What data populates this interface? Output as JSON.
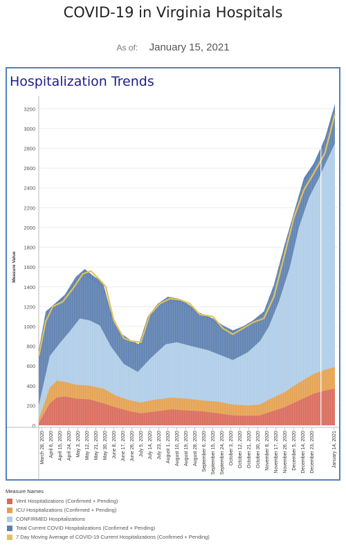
{
  "header": {
    "title": "COVID-19 in Virginia Hospitals",
    "as_of_label": "As of:",
    "as_of_date": "January 15, 2021"
  },
  "panel": {
    "title": "Hospitalization Trends"
  },
  "chart_data": {
    "type": "area",
    "ylabel": "Measure Value",
    "ylim": [
      0,
      3300
    ],
    "yticks": [
      0,
      200,
      400,
      600,
      800,
      1000,
      1200,
      1400,
      1600,
      1800,
      2000,
      2200,
      2400,
      2600,
      2800,
      3000,
      3200
    ],
    "x_start": "2020-03-25",
    "x_end": "2021-01-15",
    "xticks": [
      {
        "label": "March 28, 2020",
        "date": "2020-03-28"
      },
      {
        "label": "April 6, 2020",
        "date": "2020-04-06"
      },
      {
        "label": "April 15, 2020",
        "date": "2020-04-15"
      },
      {
        "label": "April 24, 2020",
        "date": "2020-04-24"
      },
      {
        "label": "May 3, 2020",
        "date": "2020-05-03"
      },
      {
        "label": "May 12, 2020",
        "date": "2020-05-12"
      },
      {
        "label": "May 21, 2020",
        "date": "2020-05-21"
      },
      {
        "label": "May 30, 2020",
        "date": "2020-05-30"
      },
      {
        "label": "June 8, 2020",
        "date": "2020-06-08"
      },
      {
        "label": "June 17, 2020",
        "date": "2020-06-17"
      },
      {
        "label": "June 26, 2020",
        "date": "2020-06-26"
      },
      {
        "label": "July 5, 2020",
        "date": "2020-07-05"
      },
      {
        "label": "July 14, 2020",
        "date": "2020-07-14"
      },
      {
        "label": "July 23, 2020",
        "date": "2020-07-23"
      },
      {
        "label": "August 1, 2020",
        "date": "2020-08-01"
      },
      {
        "label": "August 10, 2020",
        "date": "2020-08-10"
      },
      {
        "label": "August 19, 2020",
        "date": "2020-08-19"
      },
      {
        "label": "August 28, 2020",
        "date": "2020-08-28"
      },
      {
        "label": "September 6, 2020",
        "date": "2020-09-06"
      },
      {
        "label": "September 15, 2020",
        "date": "2020-09-15"
      },
      {
        "label": "September 24, 2020",
        "date": "2020-09-24"
      },
      {
        "label": "October 3, 2020",
        "date": "2020-10-03"
      },
      {
        "label": "October 12, 2020",
        "date": "2020-10-12"
      },
      {
        "label": "October 21, 2020",
        "date": "2020-10-21"
      },
      {
        "label": "October 30, 2020",
        "date": "2020-10-30"
      },
      {
        "label": "November 8, 2020",
        "date": "2020-11-08"
      },
      {
        "label": "November 17, 2020",
        "date": "2020-11-17"
      },
      {
        "label": "November 26, 2020",
        "date": "2020-11-26"
      },
      {
        "label": "December 5, 2020",
        "date": "2020-12-05"
      },
      {
        "label": "December 14, 2020",
        "date": "2020-12-14"
      },
      {
        "label": "December 23, 2020",
        "date": "2020-12-23"
      },
      {
        "label": "January 14, 2021",
        "date": "2021-01-14"
      }
    ],
    "series": [
      {
        "name": "Vent Hospitalizations (Confirmed + Pending)",
        "color": "#d9695a",
        "points": [
          [
            "2020-03-25",
            20
          ],
          [
            "2020-04-05",
            220
          ],
          [
            "2020-04-12",
            280
          ],
          [
            "2020-04-20",
            290
          ],
          [
            "2020-05-01",
            270
          ],
          [
            "2020-05-15",
            260
          ],
          [
            "2020-05-29",
            220
          ],
          [
            "2020-06-10",
            180
          ],
          [
            "2020-06-25",
            140
          ],
          [
            "2020-07-05",
            120
          ],
          [
            "2020-07-20",
            140
          ],
          [
            "2020-08-05",
            160
          ],
          [
            "2020-08-20",
            150
          ],
          [
            "2020-09-05",
            140
          ],
          [
            "2020-09-20",
            120
          ],
          [
            "2020-10-05",
            100
          ],
          [
            "2020-10-20",
            95
          ],
          [
            "2020-11-01",
            100
          ],
          [
            "2020-11-10",
            130
          ],
          [
            "2020-11-25",
            180
          ],
          [
            "2020-12-10",
            250
          ],
          [
            "2020-12-25",
            320
          ],
          [
            "2021-01-05",
            350
          ],
          [
            "2021-01-15",
            370
          ]
        ]
      },
      {
        "name": "ICU Hospitalizations (Confirmed + Pending)",
        "color": "#e4a04e",
        "points": [
          [
            "2020-03-25",
            60
          ],
          [
            "2020-04-05",
            380
          ],
          [
            "2020-04-12",
            450
          ],
          [
            "2020-04-20",
            440
          ],
          [
            "2020-05-01",
            410
          ],
          [
            "2020-05-15",
            400
          ],
          [
            "2020-05-29",
            370
          ],
          [
            "2020-06-10",
            300
          ],
          [
            "2020-06-25",
            250
          ],
          [
            "2020-07-05",
            230
          ],
          [
            "2020-07-20",
            260
          ],
          [
            "2020-08-05",
            280
          ],
          [
            "2020-08-20",
            270
          ],
          [
            "2020-09-05",
            250
          ],
          [
            "2020-09-20",
            240
          ],
          [
            "2020-10-05",
            210
          ],
          [
            "2020-10-20",
            200
          ],
          [
            "2020-11-01",
            210
          ],
          [
            "2020-11-10",
            260
          ],
          [
            "2020-11-25",
            330
          ],
          [
            "2020-12-10",
            430
          ],
          [
            "2020-12-25",
            520
          ],
          [
            "2021-01-05",
            560
          ],
          [
            "2021-01-15",
            590
          ]
        ]
      },
      {
        "name": "CONFIRMED Hospitalizations",
        "color": "#aecce7",
        "points": [
          [
            "2020-03-25",
            200
          ],
          [
            "2020-04-05",
            700
          ],
          [
            "2020-04-15",
            830
          ],
          [
            "2020-04-25",
            950
          ],
          [
            "2020-05-05",
            1080
          ],
          [
            "2020-05-15",
            1060
          ],
          [
            "2020-05-25",
            1010
          ],
          [
            "2020-06-05",
            800
          ],
          [
            "2020-06-18",
            620
          ],
          [
            "2020-07-02",
            540
          ],
          [
            "2020-07-15",
            680
          ],
          [
            "2020-07-30",
            820
          ],
          [
            "2020-08-10",
            840
          ],
          [
            "2020-08-25",
            800
          ],
          [
            "2020-09-10",
            760
          ],
          [
            "2020-09-25",
            700
          ],
          [
            "2020-10-05",
            660
          ],
          [
            "2020-10-20",
            740
          ],
          [
            "2020-11-01",
            850
          ],
          [
            "2020-11-10",
            1000
          ],
          [
            "2020-11-20",
            1250
          ],
          [
            "2020-12-01",
            1600
          ],
          [
            "2020-12-10",
            2000
          ],
          [
            "2020-12-20",
            2300
          ],
          [
            "2020-12-30",
            2500
          ],
          [
            "2021-01-08",
            2700
          ],
          [
            "2021-01-15",
            2850
          ]
        ]
      },
      {
        "name": "Total Current COVID Hospitalizations (Confirmed + Pending)",
        "color": "#5b7fb0",
        "points": [
          [
            "2020-03-25",
            760
          ],
          [
            "2020-04-01",
            1150
          ],
          [
            "2020-04-10",
            1230
          ],
          [
            "2020-04-20",
            1320
          ],
          [
            "2020-05-01",
            1500
          ],
          [
            "2020-05-10",
            1580
          ],
          [
            "2020-05-20",
            1500
          ],
          [
            "2020-05-28",
            1450
          ],
          [
            "2020-06-05",
            1150
          ],
          [
            "2020-06-15",
            930
          ],
          [
            "2020-06-25",
            860
          ],
          [
            "2020-07-03",
            820
          ],
          [
            "2020-07-12",
            1100
          ],
          [
            "2020-07-22",
            1230
          ],
          [
            "2020-08-01",
            1300
          ],
          [
            "2020-08-12",
            1280
          ],
          [
            "2020-08-22",
            1220
          ],
          [
            "2020-09-01",
            1140
          ],
          [
            "2020-09-15",
            1080
          ],
          [
            "2020-09-25",
            1010
          ],
          [
            "2020-10-05",
            960
          ],
          [
            "2020-10-15",
            1000
          ],
          [
            "2020-10-25",
            1060
          ],
          [
            "2020-11-05",
            1150
          ],
          [
            "2020-11-15",
            1420
          ],
          [
            "2020-11-25",
            1800
          ],
          [
            "2020-12-05",
            2150
          ],
          [
            "2020-12-15",
            2500
          ],
          [
            "2020-12-25",
            2650
          ],
          [
            "2021-01-05",
            2900
          ],
          [
            "2021-01-15",
            3250
          ]
        ]
      },
      {
        "name": "7 Day Moving Average of COVID-19 Current Hospitalizations (Confirmed + Pending)",
        "color": "#e2c25a",
        "points": [
          [
            "2020-03-25",
            700
          ],
          [
            "2020-04-01",
            1050
          ],
          [
            "2020-04-08",
            1200
          ],
          [
            "2020-04-18",
            1250
          ],
          [
            "2020-04-28",
            1380
          ],
          [
            "2020-05-08",
            1530
          ],
          [
            "2020-05-16",
            1560
          ],
          [
            "2020-05-24",
            1480
          ],
          [
            "2020-05-31",
            1400
          ],
          [
            "2020-06-08",
            1060
          ],
          [
            "2020-06-18",
            880
          ],
          [
            "2020-06-26",
            850
          ],
          [
            "2020-07-05",
            840
          ],
          [
            "2020-07-14",
            1120
          ],
          [
            "2020-07-24",
            1230
          ],
          [
            "2020-08-03",
            1280
          ],
          [
            "2020-08-13",
            1270
          ],
          [
            "2020-08-23",
            1230
          ],
          [
            "2020-09-02",
            1120
          ],
          [
            "2020-09-15",
            1100
          ],
          [
            "2020-09-25",
            980
          ],
          [
            "2020-10-05",
            920
          ],
          [
            "2020-10-15",
            980
          ],
          [
            "2020-10-25",
            1040
          ],
          [
            "2020-11-05",
            1080
          ],
          [
            "2020-11-15",
            1300
          ],
          [
            "2020-11-25",
            1700
          ],
          [
            "2020-12-05",
            2100
          ],
          [
            "2020-12-15",
            2380
          ],
          [
            "2020-12-25",
            2550
          ],
          [
            "2021-01-05",
            2750
          ],
          [
            "2021-01-15",
            3150
          ]
        ]
      }
    ],
    "legend": {
      "title": "Measure Names",
      "placement": "bottom-left"
    }
  }
}
